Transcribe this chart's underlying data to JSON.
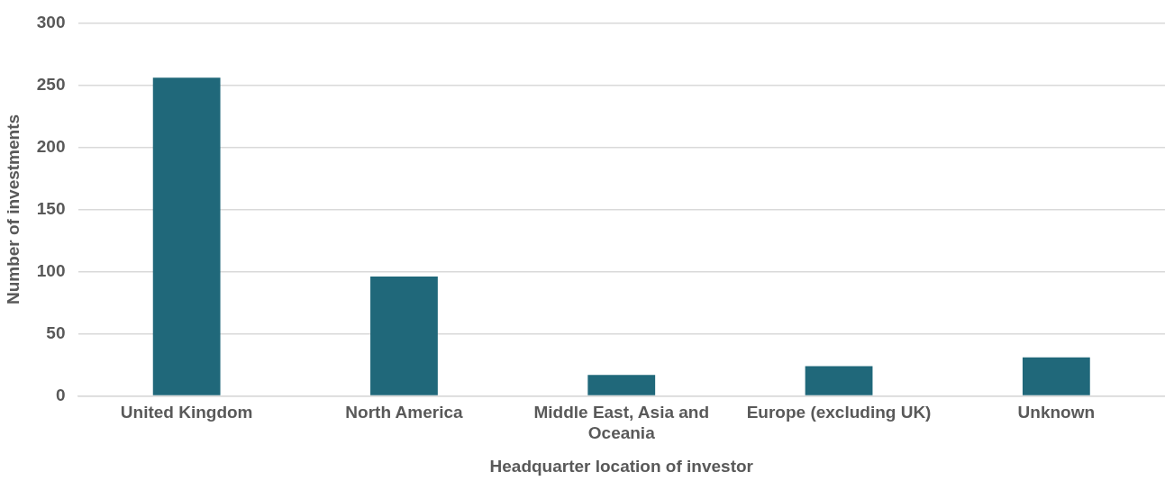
{
  "chart_data": {
    "type": "bar",
    "xlabel": "Headquarter location of investor",
    "ylabel": "Number of investments",
    "categories": [
      "United Kingdom",
      "North America",
      "Middle East, Asia and Oceania",
      "Europe (excluding UK)",
      "Unknown"
    ],
    "values": [
      256,
      96,
      17,
      24,
      31
    ],
    "color": "#20687a",
    "ylim": [
      0,
      300
    ],
    "yticks": [
      0,
      50,
      100,
      150,
      200,
      250,
      300
    ],
    "grid": "y"
  }
}
